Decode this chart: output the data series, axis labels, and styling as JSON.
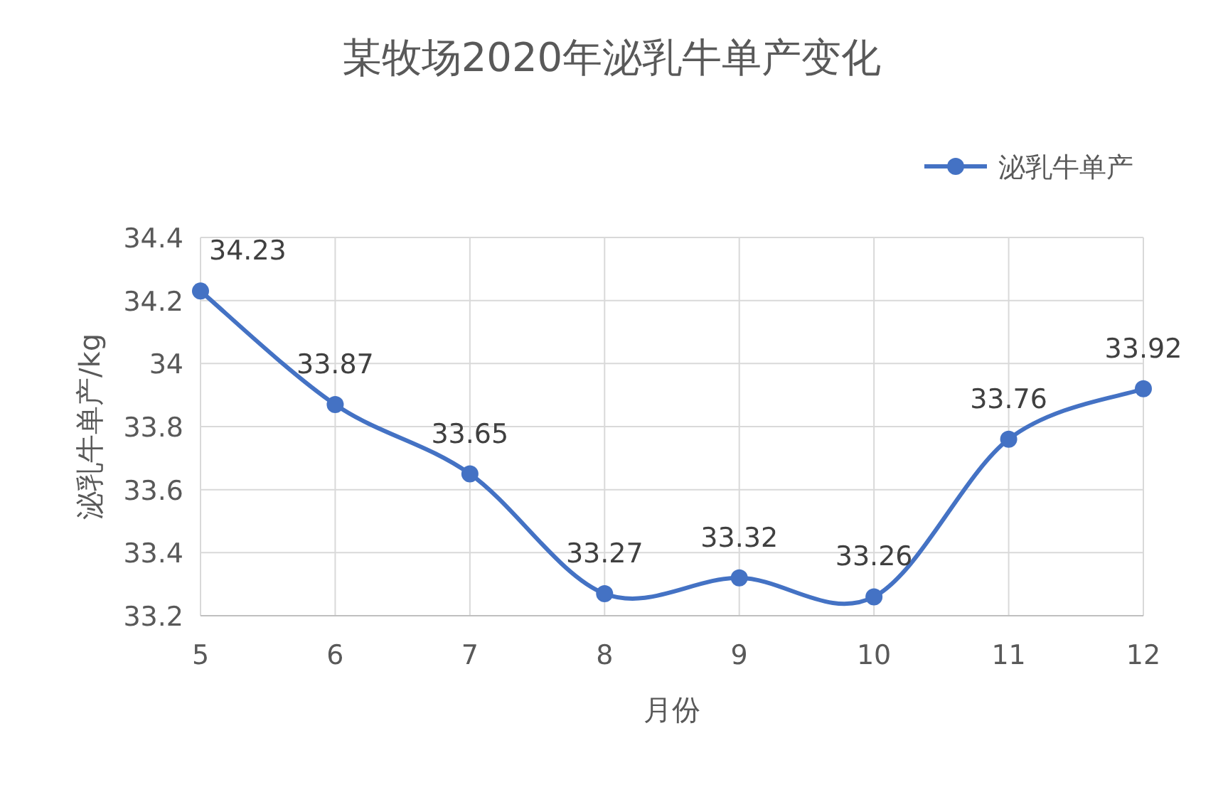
{
  "chart_data": {
    "type": "line",
    "title": "某牧场2020年泌乳牛单产变化",
    "xlabel": "月份",
    "ylabel": "泌乳牛单产/kg",
    "x": [
      5,
      6,
      7,
      8,
      9,
      10,
      11,
      12
    ],
    "series": [
      {
        "name": "泌乳牛单产",
        "color": "#4472c4",
        "values": [
          34.23,
          33.87,
          33.65,
          33.27,
          33.32,
          33.26,
          33.76,
          33.92
        ]
      }
    ],
    "xlim": [
      5,
      12
    ],
    "xticks": [
      5,
      6,
      7,
      8,
      9,
      10,
      11,
      12
    ],
    "ylim": [
      33.2,
      34.4
    ],
    "yticks": [
      33.2,
      33.4,
      33.6,
      33.8,
      34,
      34.2,
      34.4
    ],
    "grid": true,
    "legend": "top right",
    "marker": "circle",
    "line_style": "solid",
    "data_labels": true
  }
}
